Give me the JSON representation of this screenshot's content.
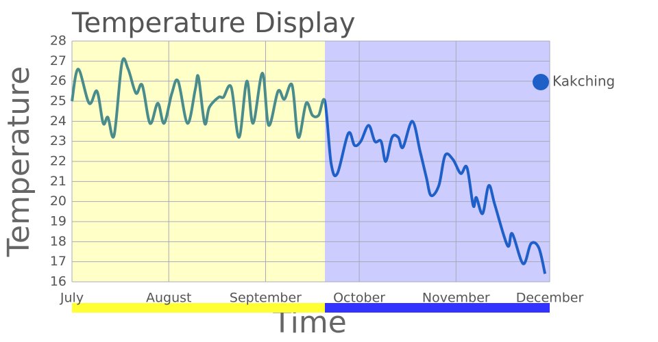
{
  "chart_data": {
    "type": "line",
    "title": "Temperature Display",
    "x_label": "Time",
    "y_label": "Temperature",
    "x": [
      0,
      2,
      5.5,
      8,
      10,
      11.5,
      13.5,
      16,
      18,
      20.5,
      22.5,
      25,
      27.5,
      29.5,
      32,
      34,
      37,
      39.5,
      40.5,
      42.5,
      44,
      47,
      48.5,
      51,
      53.5,
      56,
      58,
      61,
      63,
      66,
      68,
      70.5,
      72.5,
      75,
      77,
      79,
      81,
      83,
      85,
      88.5,
      90.5,
      92.5,
      95,
      97,
      99,
      100.5,
      102.5,
      104.5,
      106,
      109,
      111.5,
      113.5,
      115,
      117.5,
      119.5,
      122,
      124.5,
      126.5,
      128.5,
      129.5,
      131.5,
      133.5,
      135.5,
      139.5,
      141,
      144.5,
      147,
      149.5,
      151.5
    ],
    "series": [
      {
        "name": "Kakching",
        "color": "#1f5fc8",
        "values": [
          25.0,
          26.6,
          24.9,
          25.5,
          23.9,
          24.2,
          23.3,
          26.9,
          26.6,
          25.4,
          25.8,
          23.9,
          24.9,
          23.9,
          25.4,
          26.0,
          23.9,
          25.6,
          26.2,
          23.9,
          24.7,
          25.2,
          25.2,
          25.7,
          23.2,
          26.0,
          23.9,
          26.4,
          23.8,
          25.5,
          25.1,
          25.8,
          23.2,
          24.9,
          24.3,
          24.3,
          25.0,
          21.9,
          21.4,
          23.4,
          22.8,
          23.0,
          23.8,
          23.0,
          23.0,
          22.0,
          23.2,
          23.2,
          22.7,
          24.0,
          22.5,
          21.2,
          20.3,
          20.8,
          22.3,
          22.1,
          21.4,
          21.7,
          19.8,
          20.2,
          19.4,
          20.8,
          19.8,
          17.8,
          18.4,
          16.9,
          17.9,
          17.7,
          16.4
        ]
      }
    ],
    "regions": [
      {
        "from": 0,
        "to": 81,
        "color": "#ffffc8",
        "bar_color": "#ffff33",
        "line_color": "#4a8c8c"
      },
      {
        "from": 81,
        "to": 153,
        "color": "#ccccff",
        "bar_color": "#3333ff",
        "line_color": "#1f5fc8"
      }
    ],
    "xlim": [
      0,
      153
    ],
    "xticks": [
      {
        "value": 0,
        "label": "July"
      },
      {
        "value": 31,
        "label": "August"
      },
      {
        "value": 62,
        "label": "September"
      },
      {
        "value": 92,
        "label": "October"
      },
      {
        "value": 123,
        "label": "November"
      },
      {
        "value": 153,
        "label": "December"
      }
    ],
    "ylim": [
      16,
      28
    ],
    "yticks": [
      16,
      17,
      18,
      19,
      20,
      21,
      22,
      23,
      24,
      25,
      26,
      27,
      28
    ],
    "grid": true,
    "legend": "right"
  }
}
